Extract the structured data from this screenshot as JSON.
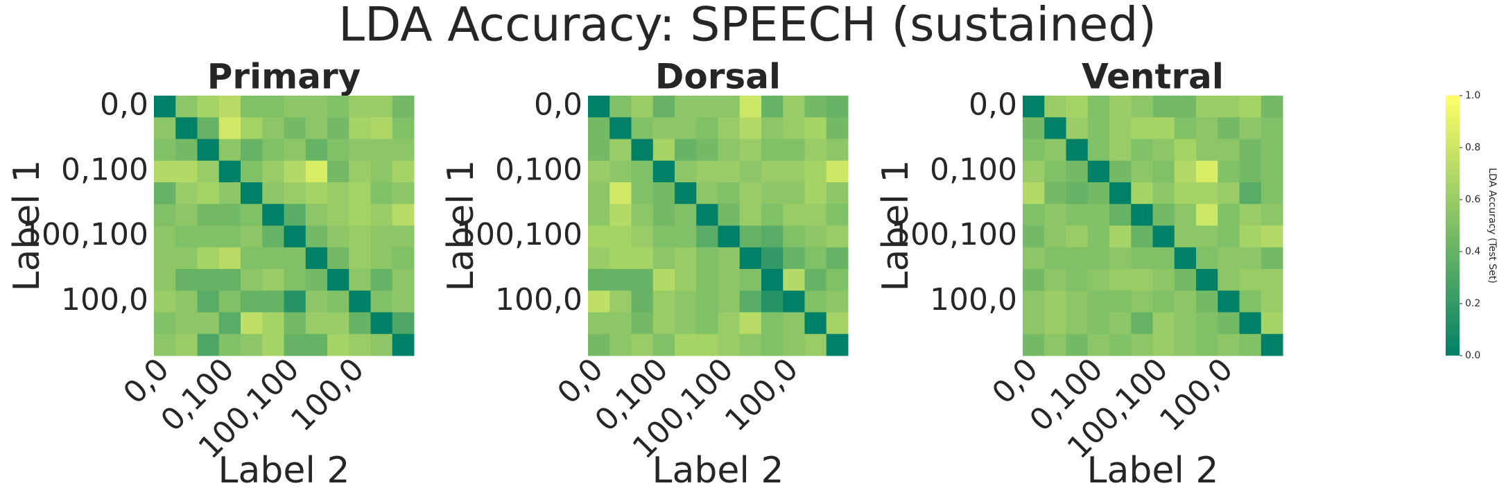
{
  "title": "LDA Accuracy: SPEECH (sustained)",
  "colorbar": {
    "label": "LDA Accuracy (Test Set)",
    "lim": [
      0,
      1
    ],
    "ticks": [
      {
        "value": 0,
        "label": "0.0"
      },
      {
        "value": 0.2,
        "label": "0.2"
      },
      {
        "value": 0.4,
        "label": "0.4"
      },
      {
        "value": 0.6,
        "label": "0.6"
      },
      {
        "value": 0.8,
        "label": "0.8"
      },
      {
        "value": 1,
        "label": "1.0"
      }
    ],
    "colormap": [
      "#008066",
      "#ffff66"
    ]
  },
  "chart_data": [
    {
      "type": "heatmap",
      "title": "Primary",
      "xlabel": "Label 2",
      "ylabel": "Label 1",
      "categories": [
        "0,0",
        null,
        null,
        "0,100",
        null,
        null,
        "100,100",
        null,
        null,
        "100,0",
        null,
        null
      ],
      "y_categories": [
        "0,0",
        null,
        null,
        "0,100",
        null,
        null,
        "100,100",
        null,
        null,
        "100,0",
        null,
        null
      ],
      "values": [
        [
          0,
          0.55,
          0.65,
          0.72,
          0.5,
          0.5,
          0.55,
          0.55,
          0.5,
          0.6,
          0.6,
          0.45
        ],
        [
          0.55,
          0,
          0.4,
          0.82,
          0.65,
          0.55,
          0.45,
          0.55,
          0.45,
          0.65,
          0.68,
          0.5
        ],
        [
          0.5,
          0.45,
          0,
          0.55,
          0.4,
          0.5,
          0.55,
          0.4,
          0.5,
          0.55,
          0.55,
          0.55
        ],
        [
          0.7,
          0.7,
          0.6,
          0,
          0.5,
          0.6,
          0.7,
          0.85,
          0.45,
          0.6,
          0.55,
          0.65
        ],
        [
          0.4,
          0.6,
          0.65,
          0.55,
          0,
          0.55,
          0.6,
          0.65,
          0.6,
          0.65,
          0.5,
          0.55
        ],
        [
          0.5,
          0.55,
          0.45,
          0.45,
          0.5,
          0,
          0.35,
          0.55,
          0.6,
          0.65,
          0.6,
          0.72
        ],
        [
          0.55,
          0.5,
          0.5,
          0.5,
          0.55,
          0.4,
          0,
          0.45,
          0.55,
          0.6,
          0.55,
          0.55
        ],
        [
          0.55,
          0.55,
          0.65,
          0.72,
          0.5,
          0.5,
          0.5,
          0,
          0.45,
          0.6,
          0.55,
          0.5
        ],
        [
          0.55,
          0.4,
          0.4,
          0.4,
          0.55,
          0.6,
          0.5,
          0.45,
          0,
          0.55,
          0.4,
          0.55
        ],
        [
          0.6,
          0.55,
          0.35,
          0.5,
          0.4,
          0.4,
          0.15,
          0.55,
          0.5,
          0,
          0.5,
          0.55
        ],
        [
          0.5,
          0.55,
          0.55,
          0.35,
          0.75,
          0.65,
          0.45,
          0.6,
          0.6,
          0.4,
          0,
          0.3
        ],
        [
          0.55,
          0.6,
          0.3,
          0.5,
          0.55,
          0.65,
          0.4,
          0.4,
          0.65,
          0.6,
          0.55,
          0
        ]
      ]
    },
    {
      "type": "heatmap",
      "title": "Dorsal",
      "xlabel": "Label 2",
      "ylabel": "Label 1",
      "categories": [
        "0,0",
        null,
        null,
        "0,100",
        null,
        null,
        "100,100",
        null,
        null,
        "100,0",
        null,
        null
      ],
      "y_categories": [
        "0,0",
        null,
        null,
        "0,100",
        null,
        null,
        "100,100",
        null,
        null,
        "100,0",
        null,
        null
      ],
      "values": [
        [
          0,
          0.5,
          0.6,
          0.4,
          0.55,
          0.55,
          0.55,
          0.8,
          0.4,
          0.6,
          0.45,
          0.4
        ],
        [
          0.45,
          0,
          0.5,
          0.55,
          0.55,
          0.5,
          0.6,
          0.7,
          0.55,
          0.6,
          0.65,
          0.45
        ],
        [
          0.45,
          0.6,
          0,
          0.65,
          0.4,
          0.45,
          0.55,
          0.6,
          0.5,
          0.5,
          0.6,
          0.55
        ],
        [
          0.6,
          0.55,
          0.5,
          0,
          0.55,
          0.6,
          0.6,
          0.55,
          0.6,
          0.6,
          0.65,
          0.8
        ],
        [
          0.55,
          0.82,
          0.5,
          0.45,
          0,
          0.55,
          0.5,
          0.6,
          0.55,
          0.55,
          0.65,
          0.55
        ],
        [
          0.55,
          0.7,
          0.55,
          0.45,
          0.5,
          0,
          0.45,
          0.6,
          0.5,
          0.6,
          0.6,
          0.5
        ],
        [
          0.65,
          0.65,
          0.6,
          0.5,
          0.5,
          0.35,
          0,
          0.4,
          0.35,
          0.5,
          0.55,
          0.6
        ],
        [
          0.6,
          0.65,
          0.65,
          0.55,
          0.6,
          0.5,
          0.55,
          0,
          0.2,
          0.4,
          0.5,
          0.4
        ],
        [
          0.4,
          0.4,
          0.4,
          0.7,
          0.6,
          0.5,
          0.55,
          0.5,
          0,
          0.7,
          0.4,
          0.5
        ],
        [
          0.75,
          0.6,
          0.4,
          0.6,
          0.55,
          0.5,
          0.55,
          0.35,
          0.15,
          0,
          0.5,
          0.55
        ],
        [
          0.55,
          0.55,
          0.45,
          0.6,
          0.55,
          0.5,
          0.6,
          0.72,
          0.5,
          0.55,
          0,
          0.65
        ],
        [
          0.45,
          0.55,
          0.6,
          0.5,
          0.65,
          0.65,
          0.6,
          0.55,
          0.5,
          0.55,
          0.6,
          0
        ]
      ]
    },
    {
      "type": "heatmap",
      "title": "Ventral",
      "xlabel": "Label 2",
      "ylabel": "Label 1",
      "categories": [
        "0,0",
        null,
        null,
        "0,100",
        null,
        null,
        "100,100",
        null,
        null,
        "100,0",
        null,
        null
      ],
      "y_categories": [
        "0,0",
        null,
        null,
        "0,100",
        null,
        null,
        "100,100",
        null,
        null,
        "100,0",
        null,
        null
      ],
      "values": [
        [
          0,
          0.6,
          0.65,
          0.5,
          0.6,
          0.55,
          0.45,
          0.45,
          0.6,
          0.6,
          0.65,
          0.45
        ],
        [
          0.45,
          0,
          0.6,
          0.5,
          0.6,
          0.65,
          0.65,
          0.5,
          0.55,
          0.45,
          0.55,
          0.5
        ],
        [
          0.5,
          0.55,
          0,
          0.5,
          0.6,
          0.5,
          0.55,
          0.65,
          0.55,
          0.55,
          0.45,
          0.5
        ],
        [
          0.6,
          0.5,
          0.45,
          0,
          0.45,
          0.55,
          0.5,
          0.7,
          0.85,
          0.5,
          0.45,
          0.5
        ],
        [
          0.7,
          0.45,
          0.4,
          0.45,
          0,
          0.65,
          0.55,
          0.65,
          0.65,
          0.6,
          0.35,
          0.5
        ],
        [
          0.5,
          0.55,
          0.5,
          0.5,
          0.4,
          0,
          0.45,
          0.55,
          0.8,
          0.5,
          0.6,
          0.55
        ],
        [
          0.45,
          0.55,
          0.6,
          0.5,
          0.65,
          0.4,
          0,
          0.55,
          0.55,
          0.5,
          0.65,
          0.7
        ],
        [
          0.55,
          0.5,
          0.5,
          0.5,
          0.55,
          0.5,
          0.5,
          0,
          0.5,
          0.55,
          0.55,
          0.45
        ],
        [
          0.45,
          0.55,
          0.5,
          0.55,
          0.6,
          0.6,
          0.55,
          0.45,
          0,
          0.55,
          0.6,
          0.6
        ],
        [
          0.55,
          0.6,
          0.55,
          0.5,
          0.5,
          0.55,
          0.5,
          0.55,
          0.45,
          0,
          0.5,
          0.6
        ],
        [
          0.55,
          0.6,
          0.55,
          0.5,
          0.55,
          0.4,
          0.6,
          0.55,
          0.5,
          0.45,
          0,
          0.65
        ],
        [
          0.45,
          0.55,
          0.45,
          0.55,
          0.5,
          0.55,
          0.6,
          0.55,
          0.5,
          0.55,
          0.5,
          0
        ]
      ]
    }
  ]
}
